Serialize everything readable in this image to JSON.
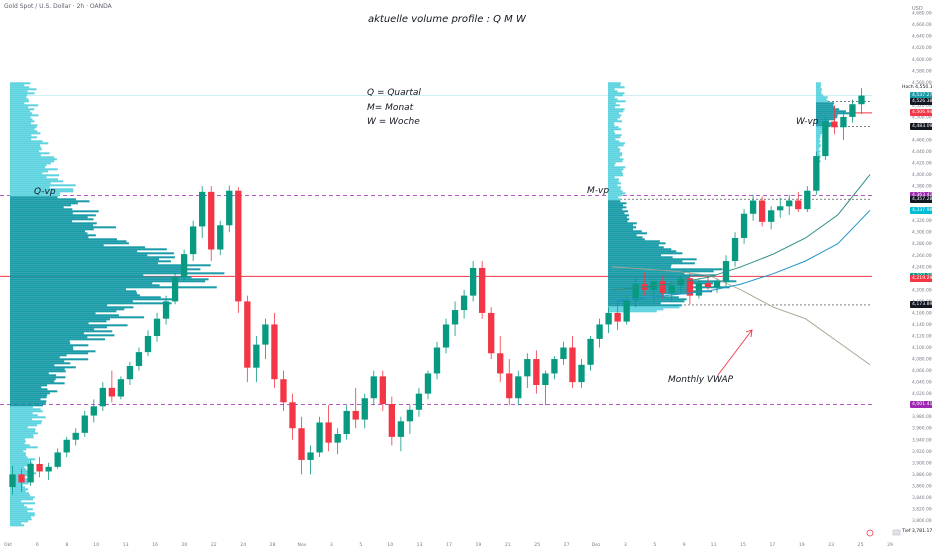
{
  "header": {
    "symbol_line": "Gold Spot / U.S. Dollar · 2h · OANDA"
  },
  "annotations": {
    "title": "aktuelle volume profile : Q M W",
    "legend_q": "Q = Quartal",
    "legend_m": "M= Monat",
    "legend_w": "W = Woche",
    "q_vp": "Q-vp",
    "m_vp": "M-vp",
    "w_vp": "W-vp",
    "monthly_vwap": "Monthly VWAP"
  },
  "price_axis": {
    "currency": "USD",
    "ticks": [
      "4,700.000",
      "4,680.000",
      "4,660.000",
      "4,640.000",
      "4,620.000",
      "4,600.000",
      "4,580.000",
      "4,560.000",
      "4,540.000",
      "4,520.000",
      "4,500.000",
      "4,480.000",
      "4,460.000",
      "4,440.000",
      "4,420.000",
      "4,400.000",
      "4,380.000",
      "4,360.000",
      "4,340.000",
      "4,320.000",
      "4,300.000",
      "4,280.000",
      "4,260.000",
      "4,240.000",
      "4,220.000",
      "4,200.000",
      "4,180.000",
      "4,160.000",
      "4,140.000",
      "4,120.000",
      "4,100.000",
      "4,080.000",
      "4,060.000",
      "4,040.000",
      "4,020.000",
      "4,000.000",
      "3,980.000",
      "3,960.000",
      "3,940.000",
      "3,920.000",
      "3,900.000",
      "3,880.000",
      "3,860.000",
      "3,840.000",
      "3,820.000",
      "3,800.000"
    ],
    "price_labels": [
      {
        "text": "Hoch",
        "value": "4,550.150",
        "style": "plain"
      },
      {
        "text": "",
        "value": "4,537.270",
        "style": "teal"
      },
      {
        "text": "",
        "value": "4,526.380",
        "style": "dark"
      },
      {
        "text": "",
        "value": "4,506.940",
        "style": "red"
      },
      {
        "text": "",
        "value": "4,483.090",
        "style": "dark"
      },
      {
        "text": "",
        "value": "4,363.420",
        "style": "purple"
      },
      {
        "text": "",
        "value": "4,357.280",
        "style": "dark"
      },
      {
        "text": "",
        "value": "4,337.986",
        "style": "cyan"
      },
      {
        "text": "",
        "value": "4,223.321",
        "style": "green"
      },
      {
        "text": "",
        "value": "4,219.291",
        "style": "red"
      },
      {
        "text": "",
        "value": "4,173.891",
        "style": "dark"
      },
      {
        "text": "",
        "value": "4,001.419",
        "style": "purple"
      },
      {
        "text": "Tief",
        "value": "3,781.175",
        "style": "plain"
      }
    ]
  },
  "time_axis": {
    "ticks": [
      "Okt",
      "6",
      "8",
      "10",
      "13",
      "16",
      "20",
      "22",
      "24",
      "28",
      "Nov",
      "3",
      "5",
      "10",
      "13",
      "17",
      "19",
      "21",
      "25",
      "27",
      "Dez",
      "3",
      "5",
      "9",
      "11",
      "15",
      "17",
      "19",
      "23",
      "25",
      "29"
    ]
  },
  "colors": {
    "up": "#089981",
    "down": "#f23645",
    "vp_light": "#5dd3e0",
    "vp_dark": "#1a9ba8",
    "poc": "#f23645",
    "va_line": "#9c27b0",
    "vwap": "#a8a38f",
    "ema_fast": "#2a8d82",
    "ema_slow": "#2196c8"
  },
  "chart_data": {
    "type": "candlestick",
    "title": "aktuelle volume profile : Q M W",
    "xlabel": "",
    "ylabel": "USD",
    "ylim": [
      3780,
      4700
    ],
    "x_range": [
      "Okt",
      "Dez 31"
    ],
    "candles_ohlc": [
      [
        3858,
        3895,
        3845,
        3880
      ],
      [
        3880,
        3890,
        3850,
        3866
      ],
      [
        3866,
        3905,
        3860,
        3898
      ],
      [
        3898,
        3910,
        3875,
        3885
      ],
      [
        3885,
        3900,
        3870,
        3893
      ],
      [
        3893,
        3925,
        3890,
        3918
      ],
      [
        3918,
        3945,
        3910,
        3940
      ],
      [
        3940,
        3960,
        3930,
        3952
      ],
      [
        3952,
        3990,
        3945,
        3982
      ],
      [
        3982,
        4010,
        3970,
        3998
      ],
      [
        3998,
        4040,
        3990,
        4030
      ],
      [
        4030,
        4060,
        4005,
        4015
      ],
      [
        4015,
        4050,
        4010,
        4045
      ],
      [
        4045,
        4075,
        4035,
        4068
      ],
      [
        4068,
        4100,
        4060,
        4092
      ],
      [
        4092,
        4130,
        4085,
        4120
      ],
      [
        4120,
        4160,
        4110,
        4150
      ],
      [
        4150,
        4190,
        4140,
        4180
      ],
      [
        4180,
        4230,
        4175,
        4222
      ],
      [
        4222,
        4270,
        4215,
        4262
      ],
      [
        4262,
        4320,
        4250,
        4310
      ],
      [
        4310,
        4380,
        4290,
        4370
      ],
      [
        4370,
        4380,
        4250,
        4270
      ],
      [
        4270,
        4320,
        4260,
        4312
      ],
      [
        4312,
        4381,
        4300,
        4372
      ],
      [
        4372,
        4378,
        4160,
        4180
      ],
      [
        4180,
        4190,
        4040,
        4065
      ],
      [
        4065,
        4120,
        4040,
        4105
      ],
      [
        4105,
        4150,
        4080,
        4140
      ],
      [
        4140,
        4160,
        4030,
        4045
      ],
      [
        4045,
        4060,
        3990,
        4005
      ],
      [
        4005,
        4020,
        3940,
        3960
      ],
      [
        3960,
        3980,
        3880,
        3905
      ],
      [
        3905,
        3930,
        3880,
        3918
      ],
      [
        3918,
        3980,
        3910,
        3970
      ],
      [
        3970,
        4000,
        3920,
        3935
      ],
      [
        3935,
        3960,
        3915,
        3950
      ],
      [
        3950,
        4000,
        3940,
        3990
      ],
      [
        3990,
        4030,
        3960,
        3975
      ],
      [
        3975,
        4020,
        3960,
        4012
      ],
      [
        4012,
        4060,
        4000,
        4050
      ],
      [
        4050,
        4060,
        3990,
        4002
      ],
      [
        4002,
        4015,
        3930,
        3945
      ],
      [
        3945,
        3980,
        3920,
        3972
      ],
      [
        3972,
        4000,
        3950,
        3992
      ],
      [
        3992,
        4030,
        3980,
        4020
      ],
      [
        4020,
        4060,
        4010,
        4055
      ],
      [
        4055,
        4110,
        4045,
        4100
      ],
      [
        4100,
        4150,
        4090,
        4140
      ],
      [
        4140,
        4180,
        4120,
        4165
      ],
      [
        4165,
        4200,
        4150,
        4190
      ],
      [
        4190,
        4250,
        4180,
        4238
      ],
      [
        4238,
        4250,
        4150,
        4160
      ],
      [
        4160,
        4170,
        4080,
        4090
      ],
      [
        4090,
        4120,
        4040,
        4055
      ],
      [
        4055,
        4080,
        4000,
        4012
      ],
      [
        4012,
        4060,
        4000,
        4050
      ],
      [
        4050,
        4090,
        4030,
        4080
      ],
      [
        4080,
        4095,
        4020,
        4035
      ],
      [
        4035,
        4060,
        4000,
        4055
      ],
      [
        4055,
        4085,
        4045,
        4080
      ],
      [
        4080,
        4110,
        4070,
        4100
      ],
      [
        4100,
        4120,
        4030,
        4040
      ],
      [
        4040,
        4080,
        4030,
        4070
      ],
      [
        4070,
        4120,
        4060,
        4115
      ],
      [
        4115,
        4150,
        4100,
        4140
      ],
      [
        4140,
        4170,
        4125,
        4160
      ],
      [
        4160,
        4180,
        4130,
        4145
      ],
      [
        4145,
        4190,
        4140,
        4182
      ],
      [
        4182,
        4220,
        4170,
        4210
      ],
      [
        4210,
        4230,
        4190,
        4200
      ],
      [
        4200,
        4220,
        4180,
        4215
      ],
      [
        4215,
        4225,
        4185,
        4195
      ],
      [
        4195,
        4215,
        4180,
        4208
      ],
      [
        4208,
        4225,
        4195,
        4220
      ],
      [
        4220,
        4230,
        4175,
        4190
      ],
      [
        4190,
        4220,
        4185,
        4212
      ],
      [
        4212,
        4225,
        4200,
        4205
      ],
      [
        4205,
        4220,
        4195,
        4215
      ],
      [
        4215,
        4260,
        4205,
        4250
      ],
      [
        4250,
        4300,
        4240,
        4290
      ],
      [
        4290,
        4340,
        4280,
        4332
      ],
      [
        4332,
        4365,
        4320,
        4355
      ],
      [
        4355,
        4362,
        4310,
        4318
      ],
      [
        4318,
        4345,
        4305,
        4338
      ],
      [
        4338,
        4360,
        4325,
        4345
      ],
      [
        4345,
        4365,
        4330,
        4355
      ],
      [
        4355,
        4370,
        4335,
        4340
      ],
      [
        4340,
        4380,
        4335,
        4372
      ],
      [
        4372,
        4440,
        4365,
        4432
      ],
      [
        4432,
        4500,
        4425,
        4492
      ],
      [
        4492,
        4520,
        4470,
        4482
      ],
      [
        4482,
        4510,
        4460,
        4500
      ],
      [
        4500,
        4530,
        4490,
        4522
      ],
      [
        4522,
        4550,
        4505,
        4537
      ]
    ],
    "volume_profiles": [
      {
        "name": "Q-vp",
        "poc": 4223.3,
        "va_high": 4363.4,
        "va_low": 4001.4
      },
      {
        "name": "M-vp",
        "poc": 4219.3,
        "va_high": 4357.3,
        "va_low": 4173.9
      },
      {
        "name": "W-vp",
        "poc": 4506.9,
        "va_high": 4526.4,
        "va_low": 4483.1
      }
    ],
    "lines": [
      {
        "name": "Monthly VWAP",
        "values": [
          4240,
          4236,
          4232,
          4225,
          4200,
          4170,
          4150,
          4110,
          4070
        ]
      },
      {
        "name": "EMA fast",
        "values": [
          4200,
          4205,
          4212,
          4222,
          4240,
          4262,
          4290,
          4330,
          4400
        ]
      },
      {
        "name": "EMA slow",
        "values": [
          4180,
          4186,
          4192,
          4198,
          4210,
          4228,
          4250,
          4280,
          4338
        ]
      }
    ]
  }
}
